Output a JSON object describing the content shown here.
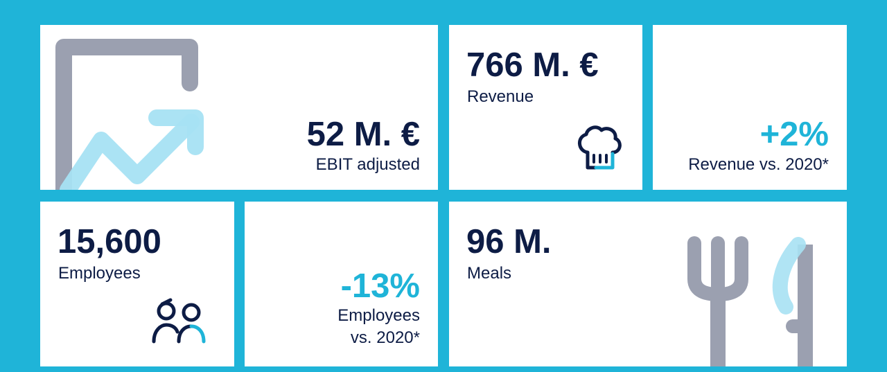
{
  "colors": {
    "background": "#1fb4d8",
    "tile": "#ffffff",
    "text_dark": "#0d1c45",
    "accent": "#1fb4d8",
    "icon_gray": "#9ba0b0",
    "icon_light_blue": "#a7e1f3"
  },
  "tiles": {
    "ebit": {
      "value": "52 M. €",
      "label": "EBIT adjusted",
      "icon": "growth-chart-icon"
    },
    "revenue": {
      "value": "766 M. €",
      "label": "Revenue",
      "icon": "chef-hat-icon"
    },
    "revenue_change": {
      "value": "+2%",
      "label": "Revenue vs. 2020*"
    },
    "employees": {
      "value": "15,600",
      "label": "Employees",
      "icon": "people-icon"
    },
    "employees_change": {
      "value": "-13%",
      "label_line1": "Employees",
      "label_line2": "vs. 2020*"
    },
    "meals": {
      "value": "96 M.",
      "label": "Meals",
      "icon": "fork-knife-icon"
    }
  }
}
